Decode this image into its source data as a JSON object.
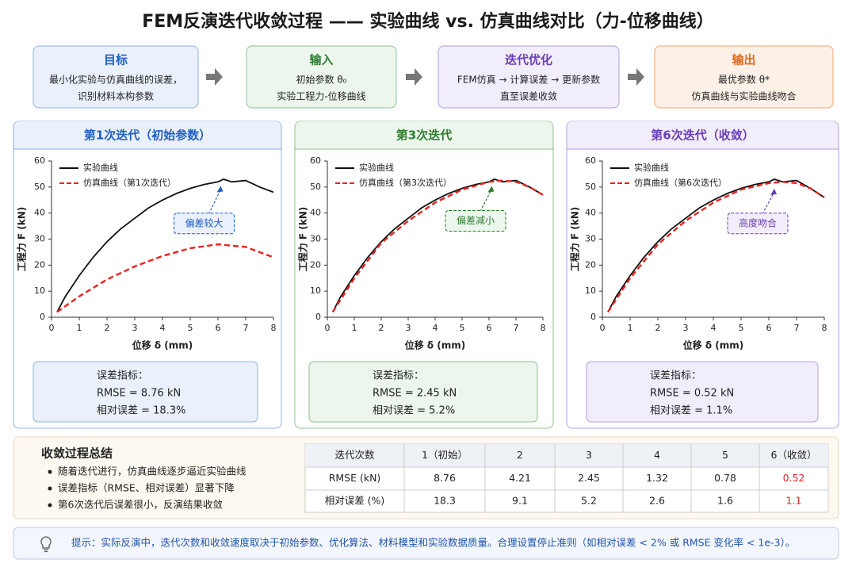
{
  "header": {
    "title": "FEM反演迭代收敛过程 —— 实验曲线 vs. 仿真曲线对比（力-位移曲线）"
  },
  "steps": [
    {
      "title": "目标",
      "lines": [
        "最小化实验与仿真曲线的误差，",
        "识别材料本构参数"
      ]
    },
    {
      "title": "输入",
      "lines": [
        "初始参数 θ₀",
        "实验工程力-位移曲线"
      ]
    },
    {
      "title": "迭代优化",
      "lines": [
        "FEM仿真 → 计算误差 → 更新参数",
        "直至误差收敛"
      ]
    },
    {
      "title": "输出",
      "lines": [
        "最优参数 θ*",
        "仿真曲线与实验曲线吻合"
      ]
    }
  ],
  "panels": [
    {
      "title": "第1次迭代（初始参数）",
      "metrics_title": "误差指标：",
      "metrics": [
        "RMSE = 8.76 kN",
        "相对误差 = 18.3%"
      ]
    },
    {
      "title": "第3次迭代",
      "metrics_title": "误差指标：",
      "metrics": [
        "RMSE = 2.45 kN",
        "相对误差 = 5.2%"
      ]
    },
    {
      "title": "第6次迭代（收敛）",
      "metrics_title": "误差指标：",
      "metrics": [
        "RMSE = 0.52 kN",
        "相对误差 = 1.1%"
      ]
    }
  ],
  "chart_data": [
    {
      "type": "line",
      "xlabel": "位移 δ (mm)",
      "ylabel": "工程力 F (kN)",
      "xlim": [
        0,
        8
      ],
      "ylim": [
        0,
        60
      ],
      "xticks": [
        0,
        1,
        2,
        3,
        4,
        5,
        6,
        7,
        8
      ],
      "yticks": [
        0,
        10,
        20,
        30,
        40,
        50,
        60
      ],
      "annotation": "偏差较大",
      "series": [
        {
          "name": "实验曲线",
          "color": "#111111",
          "style": "solid",
          "x": [
            0.2,
            0.5,
            1,
            1.5,
            2,
            2.5,
            3,
            3.5,
            4,
            4.5,
            5,
            5.5,
            6,
            6.2,
            6.5,
            7,
            7.5,
            8
          ],
          "values": [
            2,
            8,
            16,
            23,
            29,
            34,
            38,
            42,
            45,
            47.5,
            49.5,
            51,
            52,
            53,
            52,
            52.5,
            50,
            48
          ]
        },
        {
          "name": "仿真曲线（第1次迭代）",
          "color": "#e8231f",
          "style": "dashed",
          "x": [
            0.2,
            1,
            2,
            3,
            4,
            5,
            6,
            7,
            8
          ],
          "values": [
            2,
            8,
            14.5,
            19.5,
            23.5,
            26.5,
            28,
            27,
            23
          ]
        }
      ]
    },
    {
      "type": "line",
      "xlabel": "位移 δ (mm)",
      "ylabel": "工程力 F (kN)",
      "xlim": [
        0,
        8
      ],
      "ylim": [
        0,
        60
      ],
      "xticks": [
        0,
        1,
        2,
        3,
        4,
        5,
        6,
        7,
        8
      ],
      "yticks": [
        0,
        10,
        20,
        30,
        40,
        50,
        60
      ],
      "annotation": "偏差减小",
      "series": [
        {
          "name": "实验曲线",
          "color": "#111111",
          "style": "solid",
          "x": [
            0.2,
            0.5,
            1,
            1.5,
            2,
            2.5,
            3,
            3.5,
            4,
            4.5,
            5,
            5.5,
            6,
            6.2,
            6.5,
            7,
            7.5,
            8
          ],
          "values": [
            2,
            8,
            16,
            23,
            29,
            34,
            38,
            42,
            45,
            47.5,
            49.5,
            51,
            52,
            53,
            52,
            52.5,
            50,
            47
          ]
        },
        {
          "name": "仿真曲线（第3次迭代）",
          "color": "#e8231f",
          "style": "dashed",
          "x": [
            0.2,
            1,
            2,
            3,
            4,
            5,
            6,
            6.5,
            7,
            7.5,
            8
          ],
          "values": [
            2,
            15,
            28.5,
            37,
            44,
            49,
            52,
            52.5,
            52,
            50,
            47
          ]
        }
      ]
    },
    {
      "type": "line",
      "xlabel": "位移 δ (mm)",
      "ylabel": "工程力 F (kN)",
      "xlim": [
        0,
        8
      ],
      "ylim": [
        0,
        60
      ],
      "xticks": [
        0,
        1,
        2,
        3,
        4,
        5,
        6,
        7,
        8
      ],
      "yticks": [
        0,
        10,
        20,
        30,
        40,
        50,
        60
      ],
      "annotation": "高度吻合",
      "series": [
        {
          "name": "实验曲线",
          "color": "#111111",
          "style": "solid",
          "x": [
            0.2,
            0.5,
            1,
            1.5,
            2,
            2.5,
            3,
            3.5,
            4,
            4.5,
            5,
            5.5,
            6,
            6.2,
            6.5,
            7,
            7.5,
            8
          ],
          "values": [
            2,
            8,
            16,
            23,
            29,
            34,
            38,
            42,
            45,
            47.5,
            49.5,
            51,
            52,
            53,
            52,
            52.5,
            49.5,
            46
          ]
        },
        {
          "name": "仿真曲线（第6次迭代）",
          "color": "#e8231f",
          "style": "dashed",
          "x": [
            0.2,
            1,
            2,
            3,
            4,
            5,
            6,
            6.5,
            7,
            7.5,
            8
          ],
          "values": [
            2,
            15,
            28,
            37,
            44,
            49,
            51.5,
            52,
            51.5,
            49.5,
            46
          ]
        }
      ]
    }
  ],
  "summary": {
    "title": "收敛过程总结",
    "bullets": [
      "随着迭代进行，仿真曲线逐步逼近实验曲线",
      "误差指标（RMSE、相对误差）显著下降",
      "第6次迭代后误差很小，反演结果收敛"
    ]
  },
  "table": {
    "header": [
      "迭代次数",
      "1（初始）",
      "2",
      "3",
      "4",
      "5",
      "6（收敛）"
    ],
    "rows": [
      [
        "RMSE (kN)",
        8.76,
        4.21,
        2.45,
        1.32,
        0.78,
        0.52
      ],
      [
        "相对误差 (%)",
        18.3,
        9.1,
        5.2,
        2.6,
        1.6,
        1.1
      ]
    ]
  },
  "tip": "提示：实际反演中，迭代次数和收敛速度取决于初始参数、优化算法、材料模型和实验数据质量。合理设置停止准则（如相对误差 < 2% 或 RMSE 变化率 < 1e-3）。"
}
